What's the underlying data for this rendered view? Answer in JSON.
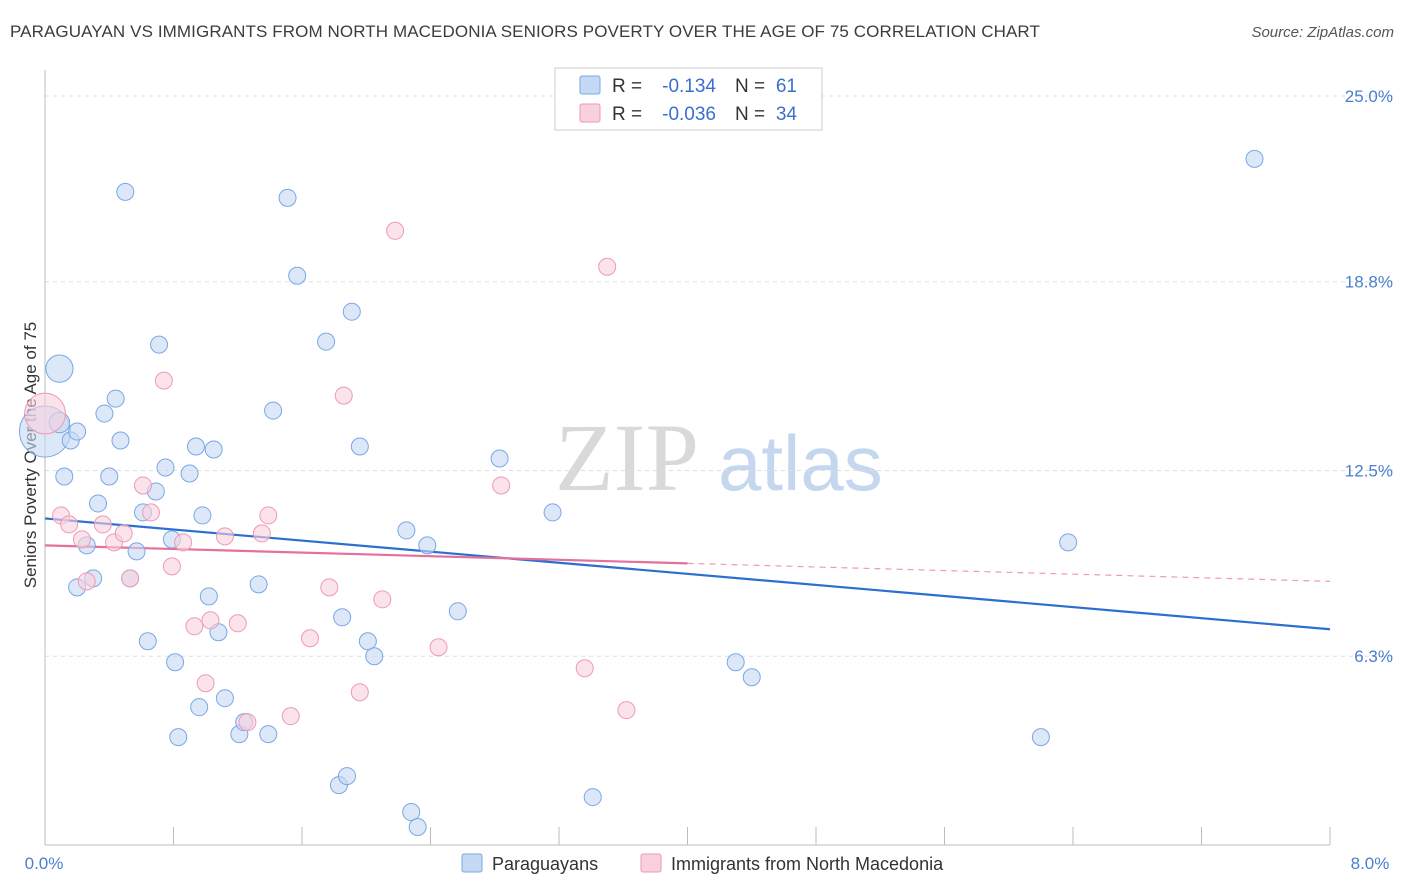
{
  "title": "PARAGUAYAN VS IMMIGRANTS FROM NORTH MACEDONIA SENIORS POVERTY OVER THE AGE OF 75 CORRELATION CHART",
  "source": "Source: ZipAtlas.com",
  "watermark": {
    "zip": "ZIP",
    "atlas": "atlas"
  },
  "legend": [
    {
      "r_label": "R =",
      "r_value": "-0.134",
      "n_label": "N =",
      "n_value": "61"
    },
    {
      "r_label": "R =",
      "r_value": "-0.036",
      "n_label": "N =",
      "n_value": "34"
    }
  ],
  "chart_data": {
    "type": "scatter",
    "title": "PARAGUAYAN VS IMMIGRANTS FROM NORTH MACEDONIA SENIORS POVERTY OVER THE AGE OF 75 CORRELATION CHART",
    "xlabel": "",
    "ylabel": "Seniors Poverty Over the Age of 75",
    "xlim": [
      0,
      8
    ],
    "ylim": [
      0,
      25.6
    ],
    "x_tick_labels": [
      "0.0%",
      "8.0%"
    ],
    "y_ticks": [
      6.3,
      12.5,
      18.8,
      25.0
    ],
    "y_tick_labels": [
      "6.3%",
      "12.5%",
      "18.8%",
      "25.0%"
    ],
    "grid": true,
    "legend_position": "top-center",
    "series": [
      {
        "name": "Paraguayans",
        "color": "#7aa7e6",
        "fill": "#c5d9f4",
        "points": [
          [
            0.0,
            13.8,
            3
          ],
          [
            0.09,
            15.9,
            1.6
          ],
          [
            0.09,
            14.1,
            1.2
          ],
          [
            0.12,
            12.3,
            1
          ],
          [
            0.16,
            13.5,
            1
          ],
          [
            0.2,
            13.8,
            1
          ],
          [
            0.2,
            8.6,
            1
          ],
          [
            0.26,
            10.0,
            1
          ],
          [
            0.3,
            8.9,
            1
          ],
          [
            0.33,
            11.4,
            1
          ],
          [
            0.37,
            14.4,
            1
          ],
          [
            0.4,
            12.3,
            1
          ],
          [
            0.44,
            14.9,
            1
          ],
          [
            0.47,
            13.5,
            1
          ],
          [
            0.5,
            21.8,
            1
          ],
          [
            0.53,
            8.9,
            1
          ],
          [
            0.57,
            9.8,
            1
          ],
          [
            0.61,
            11.1,
            1
          ],
          [
            0.64,
            6.8,
            1
          ],
          [
            0.69,
            11.8,
            1
          ],
          [
            0.71,
            16.7,
            1
          ],
          [
            0.75,
            12.6,
            1
          ],
          [
            0.79,
            10.2,
            1
          ],
          [
            0.81,
            6.1,
            1
          ],
          [
            0.83,
            3.6,
            1
          ],
          [
            0.9,
            12.4,
            1
          ],
          [
            0.94,
            13.3,
            1
          ],
          [
            0.96,
            4.6,
            1
          ],
          [
            0.98,
            11.0,
            1
          ],
          [
            1.02,
            8.3,
            1
          ],
          [
            1.05,
            13.2,
            1
          ],
          [
            1.08,
            7.1,
            1
          ],
          [
            1.12,
            4.9,
            1
          ],
          [
            1.21,
            3.7,
            1
          ],
          [
            1.24,
            4.1,
            1
          ],
          [
            1.33,
            8.7,
            1
          ],
          [
            1.39,
            3.7,
            1
          ],
          [
            1.42,
            14.5,
            1
          ],
          [
            1.51,
            21.6,
            1
          ],
          [
            1.57,
            19.0,
            1
          ],
          [
            1.75,
            16.8,
            1
          ],
          [
            1.83,
            2.0,
            1
          ],
          [
            1.85,
            7.6,
            1
          ],
          [
            1.88,
            2.3,
            1
          ],
          [
            1.91,
            17.8,
            1
          ],
          [
            1.96,
            13.3,
            1
          ],
          [
            2.01,
            6.8,
            1
          ],
          [
            2.05,
            6.3,
            1
          ],
          [
            2.25,
            10.5,
            1
          ],
          [
            2.28,
            1.1,
            1
          ],
          [
            2.32,
            0.6,
            1
          ],
          [
            2.38,
            10.0,
            1
          ],
          [
            2.57,
            7.8,
            1
          ],
          [
            2.83,
            12.9,
            1
          ],
          [
            3.16,
            11.1,
            1
          ],
          [
            3.41,
            1.6,
            1
          ],
          [
            4.3,
            6.1,
            1
          ],
          [
            4.4,
            5.6,
            1
          ],
          [
            6.2,
            3.6,
            1
          ],
          [
            6.37,
            10.1,
            1
          ],
          [
            7.53,
            22.9,
            1
          ]
        ],
        "trend": {
          "x": [
            0.0,
            8.0
          ],
          "y": [
            10.9,
            7.2
          ]
        }
      },
      {
        "name": "Immigrants from North Macedonia",
        "color": "#ef9ab5",
        "fill": "#f9d0dd",
        "points": [
          [
            0.0,
            14.4,
            2.4
          ],
          [
            0.1,
            11.0,
            1
          ],
          [
            0.15,
            10.7,
            1
          ],
          [
            0.23,
            10.2,
            1
          ],
          [
            0.26,
            8.8,
            1
          ],
          [
            0.36,
            10.7,
            1
          ],
          [
            0.43,
            10.1,
            1
          ],
          [
            0.49,
            10.4,
            1
          ],
          [
            0.53,
            8.9,
            1
          ],
          [
            0.61,
            12.0,
            1
          ],
          [
            0.66,
            11.1,
            1
          ],
          [
            0.74,
            15.5,
            1
          ],
          [
            0.79,
            9.3,
            1
          ],
          [
            0.86,
            10.1,
            1
          ],
          [
            0.93,
            7.3,
            1
          ],
          [
            1.0,
            5.4,
            1
          ],
          [
            1.03,
            7.5,
            1
          ],
          [
            1.12,
            10.3,
            1
          ],
          [
            1.2,
            7.4,
            1
          ],
          [
            1.26,
            4.1,
            1
          ],
          [
            1.35,
            10.4,
            1
          ],
          [
            1.39,
            11.0,
            1
          ],
          [
            1.53,
            4.3,
            1
          ],
          [
            1.65,
            6.9,
            1
          ],
          [
            1.77,
            8.6,
            1
          ],
          [
            1.86,
            15.0,
            1
          ],
          [
            1.96,
            5.1,
            1
          ],
          [
            2.1,
            8.2,
            1
          ],
          [
            2.18,
            20.5,
            1
          ],
          [
            2.45,
            6.6,
            1
          ],
          [
            2.84,
            12.0,
            1
          ],
          [
            3.36,
            5.9,
            1
          ],
          [
            3.5,
            19.3,
            1
          ],
          [
            3.62,
            4.5,
            1
          ]
        ],
        "trend": {
          "x": [
            0.0,
            4.0
          ],
          "y": [
            10.0,
            9.4
          ]
        },
        "trend_dashed": {
          "x": [
            4.0,
            8.0
          ],
          "y": [
            9.4,
            8.8
          ]
        }
      }
    ]
  }
}
